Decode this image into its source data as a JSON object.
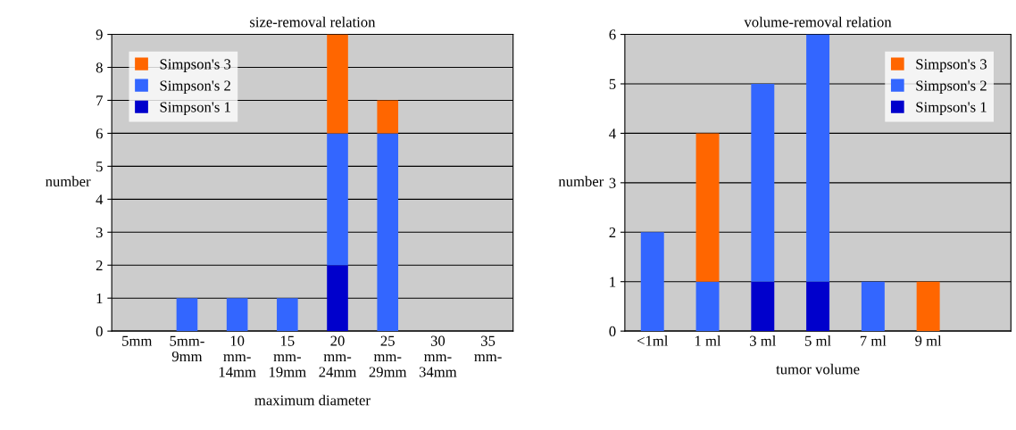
{
  "chart_data": [
    {
      "type": "bar",
      "title": "size-removal relation",
      "xlabel": "maximum diameter",
      "ylabel": "number",
      "categories": [
        "5mm",
        "5mm-\n9mm",
        "10\nmm-\n14mm",
        "15\nmm-\n19mm",
        "20\nmm-\n24mm",
        "25\nmm-\n29mm",
        "30\nmm-\n34mm",
        "35\nmm-"
      ],
      "stacked": true,
      "ylim": [
        0,
        9
      ],
      "yticks": [
        0,
        1,
        2,
        3,
        4,
        5,
        6,
        7,
        8,
        9
      ],
      "grid": "y",
      "legend": "top left",
      "series": [
        {
          "name": "Simpson's 1",
          "color": "#0000cc",
          "values": [
            0,
            0,
            0,
            0,
            2,
            0,
            0,
            0
          ]
        },
        {
          "name": "Simpson's 2",
          "color": "#3366ff",
          "values": [
            0,
            1,
            1,
            1,
            4,
            6,
            0,
            0
          ]
        },
        {
          "name": "Simpson's 3",
          "color": "#ff6600",
          "values": [
            0,
            0,
            0,
            0,
            3,
            1,
            0,
            0
          ]
        }
      ]
    },
    {
      "type": "bar",
      "title": "volume-removal relation",
      "xlabel": "tumor volume",
      "ylabel": "number",
      "categories": [
        "<1ml",
        "1 ml",
        "3 ml",
        "5 ml",
        "7 ml",
        "9 ml",
        null
      ],
      "stacked": true,
      "ylim": [
        0,
        6
      ],
      "yticks": [
        0,
        1,
        2,
        3,
        4,
        5,
        6
      ],
      "grid": "y",
      "legend": "top right",
      "series": [
        {
          "name": "Simpson's 1",
          "color": "#0000cc",
          "values": [
            0,
            0,
            1,
            1,
            0,
            0,
            0
          ]
        },
        {
          "name": "Simpson's 2",
          "color": "#3366ff",
          "values": [
            2,
            1,
            4,
            5,
            1,
            0,
            0
          ]
        },
        {
          "name": "Simpson's 3",
          "color": "#ff6600",
          "values": [
            0,
            3,
            0,
            0,
            0,
            1,
            0
          ]
        }
      ]
    }
  ]
}
